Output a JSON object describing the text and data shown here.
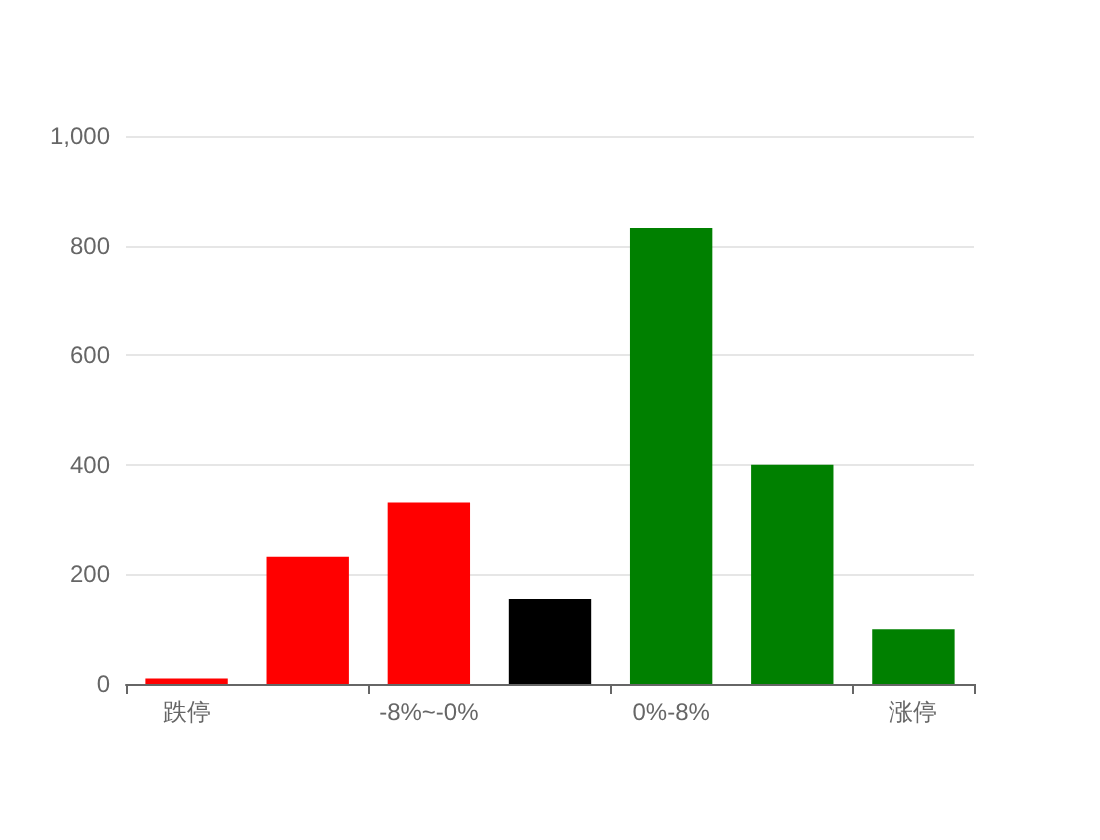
{
  "chart_data": {
    "type": "bar",
    "categories": [
      "跌停",
      null,
      "-8%~-0%",
      null,
      "0%-8%",
      null,
      "涨停"
    ],
    "values": [
      10,
      232,
      331,
      155,
      832,
      400,
      100
    ],
    "colors": [
      "#ff0000",
      "#ff0000",
      "#ff0000",
      "#000000",
      "#008000",
      "#008000",
      "#008000"
    ],
    "ylim": [
      0,
      1000
    ],
    "yticks": [
      0,
      200,
      400,
      600,
      800,
      {
        "value": 1000,
        "label": "1,000"
      }
    ],
    "grid": "y"
  }
}
